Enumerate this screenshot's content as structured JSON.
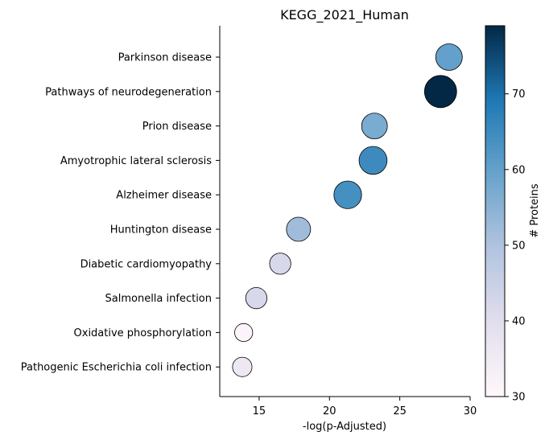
{
  "chart_data": {
    "type": "scatter",
    "title": "KEGG_2021_Human",
    "xlabel": "-log(p-Adjusted)",
    "ylabel": "",
    "xlim": [
      12.2,
      30
    ],
    "xticks": [
      15,
      20,
      25,
      30
    ],
    "grid": false,
    "categories": [
      "Parkinson disease",
      "Pathways of neurodegeneration",
      "Prion disease",
      "Amyotrophic lateral sclerosis",
      "Alzheimer disease",
      "Huntington disease",
      "Diabetic cardiomyopathy",
      "Salmonella infection",
      "Oxidative phosphorylation",
      "Pathogenic Escherichia coli infection"
    ],
    "series": [
      {
        "x": [
          28.5,
          27.9,
          23.2,
          23.1,
          21.3,
          17.8,
          16.5,
          14.8,
          13.9,
          13.8
        ],
        "proteins": [
          60,
          79,
          57,
          65,
          64,
          52,
          42,
          42,
          31,
          36
        ]
      }
    ],
    "colorbar": {
      "label": "# Proteins",
      "range": [
        30,
        79
      ],
      "ticks": [
        30,
        40,
        50,
        60,
        70
      ],
      "colormap": "PuBu"
    }
  }
}
